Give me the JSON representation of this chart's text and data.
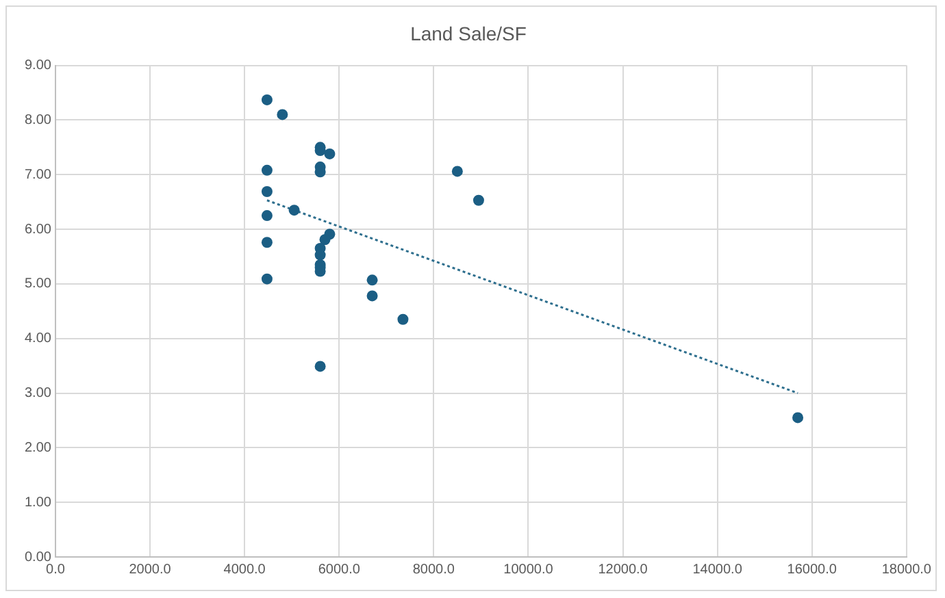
{
  "chart_data": {
    "type": "scatter",
    "title": "Land Sale/SF",
    "xlim": [
      0,
      18000
    ],
    "xticks": [
      {
        "value": 0,
        "label": "0.0"
      },
      {
        "value": 2000,
        "label": "2000.0"
      },
      {
        "value": 4000,
        "label": "4000.0"
      },
      {
        "value": 6000,
        "label": "6000.0"
      },
      {
        "value": 8000,
        "label": "8000.0"
      },
      {
        "value": 10000,
        "label": "10000.0"
      },
      {
        "value": 12000,
        "label": "12000.0"
      },
      {
        "value": 14000,
        "label": "14000.0"
      },
      {
        "value": 16000,
        "label": "16000.0"
      },
      {
        "value": 18000,
        "label": "18000.0"
      }
    ],
    "ylim": [
      0,
      9
    ],
    "yticks": [
      {
        "value": 0,
        "label": "0.00"
      },
      {
        "value": 1,
        "label": "1.00"
      },
      {
        "value": 2,
        "label": "2.00"
      },
      {
        "value": 3,
        "label": "3.00"
      },
      {
        "value": 4,
        "label": "4.00"
      },
      {
        "value": 5,
        "label": "5.00"
      },
      {
        "value": 6,
        "label": "6.00"
      },
      {
        "value": 7,
        "label": "7.00"
      },
      {
        "value": 8,
        "label": "8.00"
      },
      {
        "value": 9,
        "label": "9.00"
      }
    ],
    "grid": true,
    "legend": false,
    "marker": "circle",
    "series": [
      {
        "color": "#1b5e84",
        "x": [
          4475,
          4800,
          5600,
          5600,
          5800,
          4475,
          5600,
          5600,
          8500,
          8950,
          4475,
          5050,
          4475,
          5800,
          5700,
          5600,
          5600,
          5600,
          5600,
          5600,
          4475,
          4475,
          6700,
          6700,
          7350,
          5600,
          15700
        ],
        "values": [
          8.37,
          8.1,
          7.5,
          7.44,
          7.38,
          7.08,
          7.14,
          7.05,
          7.06,
          6.53,
          6.69,
          6.35,
          6.25,
          5.91,
          5.81,
          5.65,
          5.53,
          5.35,
          5.3,
          5.23,
          5.76,
          5.09,
          5.07,
          4.78,
          4.35,
          3.49,
          2.55
        ]
      },
      {
        "type": "line",
        "color": "#2e6f8e",
        "line_style": "dotted",
        "marker": "none",
        "x": [
          4475,
          15700
        ],
        "values": [
          6.53,
          3.0
        ]
      }
    ]
  }
}
